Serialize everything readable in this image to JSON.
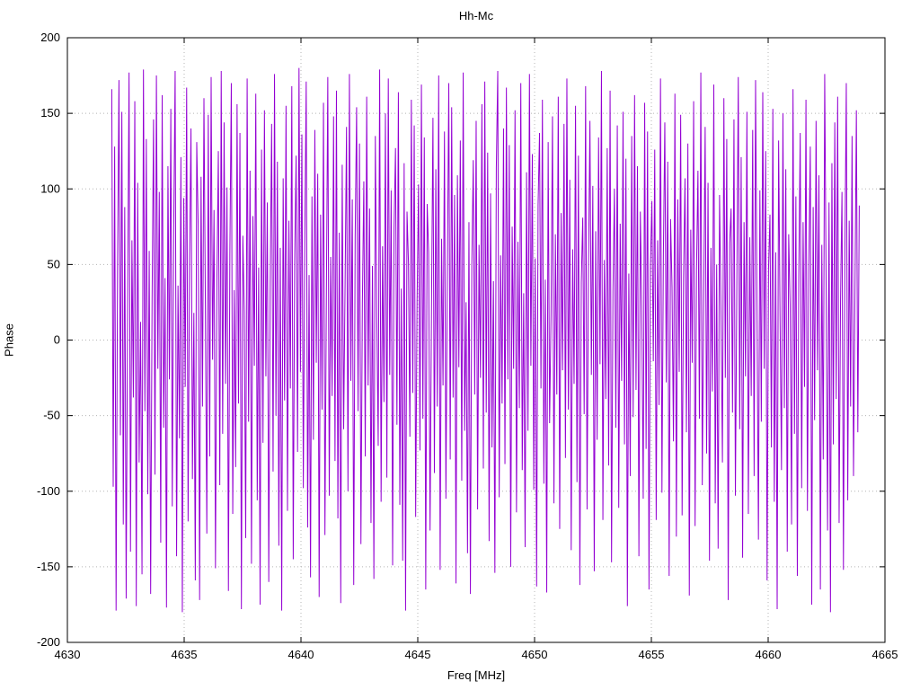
{
  "title": "Hh-Mc",
  "colors": {
    "line": "#9400D3",
    "grid": "#b5b5b5",
    "border": "#000000",
    "background": "#ffffff"
  },
  "chart_data": {
    "type": "line",
    "title": "Hh-Mc",
    "xlabel": "Freq [MHz]",
    "ylabel": "Phase",
    "xlim": [
      4630,
      4665
    ],
    "ylim": [
      -200,
      200
    ],
    "x_ticks": [
      4630,
      4635,
      4640,
      4645,
      4650,
      4655,
      4660,
      4665
    ],
    "y_ticks": [
      -200,
      -150,
      -100,
      -50,
      0,
      50,
      100,
      150,
      200
    ],
    "grid": true,
    "legend": "none",
    "series_name": "Phase",
    "x_start": 4631.9,
    "x_end": 4663.9,
    "values": [
      166,
      -97,
      128,
      -179,
      45,
      172,
      -63,
      151,
      -122,
      88,
      -171,
      23,
      177,
      -140,
      66,
      -38,
      158,
      -176,
      104,
      -81,
      12,
      -155,
      179,
      -47,
      133,
      -102,
      59,
      -168,
      27,
      146,
      -89,
      175,
      -19,
      98,
      -134,
      162,
      -58,
      41,
      -177,
      115,
      -26,
      153,
      -110,
      72,
      178,
      -143,
      36,
      -65,
      121,
      -180,
      94,
      -31,
      167,
      -120,
      53,
      140,
      -92,
      18,
      -159,
      131,
      76,
      -172,
      108,
      -44,
      160,
      22,
      -128,
      149,
      -77,
      174,
      -13,
      86,
      -151,
      39,
      125,
      -96,
      178,
      -62,
      144,
      -29,
      101,
      -166,
      57,
      170,
      -115,
      33,
      -84,
      156,
      -42,
      137,
      -178,
      69,
      19,
      -131,
      173,
      -54,
      112,
      -148,
      82,
      -17,
      163,
      -106,
      48,
      -175,
      126,
      -68,
      152,
      -24,
      91,
      -160,
      35,
      143,
      -87,
      176,
      -50,
      118,
      -136,
      61,
      -179,
      107,
      -40,
      155,
      -113,
      79,
      -32,
      168,
      -145,
      52,
      122,
      -74,
      180,
      -21,
      136,
      -98,
      64,
      171,
      -124,
      43,
      -157,
      95,
      -66,
      139,
      -15,
      110,
      -170,
      83,
      -46,
      157,
      -129,
      28,
      174,
      -103,
      55,
      -37,
      148,
      -80,
      165,
      -118,
      71,
      -174,
      116,
      -59,
      37,
      141,
      -100,
      176,
      -27,
      93,
      -162,
      68,
      154,
      -47,
      130,
      -135,
      24,
      105,
      -77,
      161,
      -30,
      87,
      -121,
      49,
      -158,
      135,
      16,
      -70,
      179,
      -107,
      62,
      -41,
      150,
      -91,
      173,
      -23,
      99,
      -149,
      74,
      127,
      -56,
      164,
      -109,
      34,
      -146,
      117,
      -179,
      85,
      51,
      -64,
      159,
      -35,
      142,
      -117,
      26,
      103,
      -73,
      169,
      -52,
      134,
      -165,
      90,
      58,
      -126,
      21,
      147,
      -88,
      113,
      -44,
      175,
      -152,
      67,
      -30,
      138,
      -105,
      42,
      170,
      -79,
      154,
      -38,
      96,
      -161,
      109,
      -18,
      132,
      -93,
      177,
      -60,
      25,
      -141,
      78,
      -168,
      50,
      119,
      -36,
      145,
      -112,
      63,
      -25,
      156,
      -85,
      171,
      -48,
      124,
      -133,
      97,
      -71,
      39,
      -154,
      114,
      178,
      -104,
      56,
      -42,
      140,
      -82,
      167,
      -26,
      129,
      -150,
      75,
      -19,
      152,
      -114,
      65,
      -45,
      170,
      -86,
      31,
      -137,
      111,
      -60,
      176,
      -17,
      123,
      -99,
      54,
      -163,
      89,
      137,
      -32,
      159,
      -95,
      40,
      -167,
      131,
      -55,
      17,
      148,
      -108,
      70,
      -36,
      161,
      -125,
      84,
      -20,
      143,
      -78,
      173,
      -46,
      106,
      -139,
      60,
      -29,
      155,
      -94,
      122,
      -162,
      38,
      81,
      -49,
      168,
      -112,
      47,
      145,
      -23,
      102,
      -153,
      72,
      -66,
      134,
      -16,
      178,
      -119,
      53,
      -39,
      127,
      -83,
      165,
      -147,
      32,
      100,
      -58,
      142,
      -111,
      77,
      -27,
      151,
      -69,
      120,
      -176,
      44,
      -90,
      135,
      -51,
      162,
      -33,
      115,
      -143,
      85,
      22,
      -105,
      157,
      -72,
      138,
      -165,
      49,
      92,
      -14,
      126,
      -119,
      66,
      -43,
      173,
      -101,
      57,
      144,
      -28,
      118,
      -156,
      80,
      35,
      -67,
      163,
      -130,
      93,
      -21,
      149,
      -116,
      41,
      107,
      -61,
      130,
      -169,
      73,
      -15,
      158,
      -123,
      46,
      112,
      -52,
      177,
      -96,
      29,
      141,
      -75,
      104,
      -146,
      61,
      -34,
      169,
      -108,
      50,
      -138,
      96,
      19,
      -81,
      160,
      -25,
      133,
      -172,
      64,
      87,
      -48,
      146,
      -103,
      36,
      174,
      -59,
      121,
      -144,
      78,
      -24,
      151,
      -115,
      68,
      -37,
      139,
      -90,
      172,
      22,
      -132,
      99,
      -54,
      164,
      -19,
      125,
      -159,
      47,
      83,
      -71,
      153,
      -107,
      58,
      -178,
      132,
      16,
      -86,
      150,
      -45,
      113,
      -140,
      70,
      24,
      -122,
      166,
      -62,
      95,
      -156,
      42,
      137,
      -98,
      78,
      -31,
      159,
      -113,
      52,
      128,
      -175,
      88,
      -53,
      145,
      -20,
      109,
      -165,
      63,
      -79,
      176,
      35,
      -126,
      91,
      -180,
      117,
      -69,
      144,
      -39,
      161,
      -121,
      26,
      98,
      -152,
      55,
      170,
      -106,
      79,
      -44,
      135,
      -90,
      30,
      152,
      -61,
      89
    ]
  }
}
